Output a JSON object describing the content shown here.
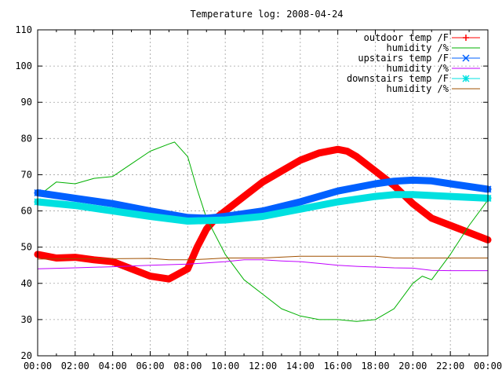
{
  "chart_data": {
    "type": "line",
    "title": "Temperature log: 2008-04-24",
    "xlabel": "",
    "ylabel": "",
    "x_ticks": [
      "00:00",
      "02:00",
      "04:00",
      "06:00",
      "08:00",
      "10:00",
      "12:00",
      "14:00",
      "16:00",
      "18:00",
      "20:00",
      "22:00",
      "00:00"
    ],
    "xlim": [
      0,
      24
    ],
    "ylim": [
      20,
      110
    ],
    "y_ticks": [
      20,
      30,
      40,
      50,
      60,
      70,
      80,
      90,
      100,
      110
    ],
    "grid": true,
    "legend_position": "top-right",
    "series": [
      {
        "name": "outdoor temp /F",
        "color": "#ff0000",
        "marker": "plus",
        "points": [
          [
            0,
            48
          ],
          [
            1,
            47
          ],
          [
            2,
            47.2
          ],
          [
            3,
            46.5
          ],
          [
            4,
            46
          ],
          [
            5,
            44
          ],
          [
            6,
            42
          ],
          [
            7,
            41.2
          ],
          [
            8,
            44
          ],
          [
            8.5,
            50
          ],
          [
            9,
            55
          ],
          [
            9.5,
            58
          ],
          [
            10,
            60
          ],
          [
            11,
            64
          ],
          [
            12,
            68
          ],
          [
            13,
            71
          ],
          [
            14,
            74
          ],
          [
            15,
            76
          ],
          [
            16,
            77
          ],
          [
            16.5,
            76.5
          ],
          [
            17,
            75
          ],
          [
            18,
            71
          ],
          [
            19,
            67
          ],
          [
            20,
            62
          ],
          [
            21,
            58
          ],
          [
            22,
            56
          ],
          [
            23,
            54
          ],
          [
            24,
            52
          ]
        ]
      },
      {
        "name": "humidity /%",
        "color": "#00b000",
        "marker": "none",
        "points": [
          [
            0,
            64
          ],
          [
            1,
            68
          ],
          [
            2,
            67.5
          ],
          [
            3,
            69
          ],
          [
            4,
            69.5
          ],
          [
            5,
            73
          ],
          [
            6,
            76.5
          ],
          [
            7,
            78.5
          ],
          [
            7.3,
            79
          ],
          [
            8,
            75
          ],
          [
            8.5,
            66
          ],
          [
            9,
            58
          ],
          [
            10,
            48
          ],
          [
            11,
            41
          ],
          [
            12,
            37
          ],
          [
            13,
            33
          ],
          [
            14,
            31
          ],
          [
            15,
            30
          ],
          [
            16,
            30
          ],
          [
            17,
            29.5
          ],
          [
            18,
            30
          ],
          [
            19,
            33
          ],
          [
            20,
            40
          ],
          [
            20.5,
            42
          ],
          [
            21,
            41
          ],
          [
            22,
            48
          ],
          [
            23,
            56
          ],
          [
            24,
            63
          ]
        ]
      },
      {
        "name": "upstairs temp /F",
        "color": "#0060ff",
        "marker": "x",
        "points": [
          [
            0,
            65
          ],
          [
            2,
            63.5
          ],
          [
            4,
            62
          ],
          [
            6,
            60
          ],
          [
            8,
            58.2
          ],
          [
            9,
            58
          ],
          [
            10,
            58.5
          ],
          [
            12,
            60
          ],
          [
            14,
            62.5
          ],
          [
            16,
            65.5
          ],
          [
            18,
            67.5
          ],
          [
            19,
            68.2
          ],
          [
            20,
            68.5
          ],
          [
            21,
            68.3
          ],
          [
            22,
            67.5
          ],
          [
            24,
            66
          ]
        ]
      },
      {
        "name": "humidity /%",
        "color": "#c000ff",
        "marker": "none",
        "points": [
          [
            0,
            44
          ],
          [
            2,
            44.3
          ],
          [
            4,
            44.6
          ],
          [
            6,
            45
          ],
          [
            8,
            45.3
          ],
          [
            10,
            46
          ],
          [
            11,
            46.5
          ],
          [
            12,
            46.5
          ],
          [
            13,
            46.2
          ],
          [
            14,
            46
          ],
          [
            15,
            45.5
          ],
          [
            16,
            45
          ],
          [
            17,
            44.7
          ],
          [
            18,
            44.5
          ],
          [
            19,
            44.3
          ],
          [
            20,
            44.2
          ],
          [
            21,
            43.6
          ],
          [
            22,
            43.5
          ],
          [
            24,
            43.5
          ]
        ]
      },
      {
        "name": "downstairs temp /F",
        "color": "#00e0e0",
        "marker": "star",
        "points": [
          [
            0,
            62.5
          ],
          [
            2,
            61.5
          ],
          [
            4,
            60
          ],
          [
            6,
            58.5
          ],
          [
            8,
            57.2
          ],
          [
            10,
            57.5
          ],
          [
            12,
            58.5
          ],
          [
            14,
            60.5
          ],
          [
            16,
            62.5
          ],
          [
            18,
            64
          ],
          [
            19,
            64.5
          ],
          [
            20,
            64.5
          ],
          [
            22,
            64
          ],
          [
            24,
            63.5
          ]
        ]
      },
      {
        "name": "humidity /%",
        "color": "#a05000",
        "marker": "none",
        "points": [
          [
            0,
            46.7
          ],
          [
            2,
            46.8
          ],
          [
            4,
            46.8
          ],
          [
            6,
            46.9
          ],
          [
            7,
            46.5
          ],
          [
            8,
            46.5
          ],
          [
            9,
            46.7
          ],
          [
            10,
            47
          ],
          [
            12,
            47
          ],
          [
            14,
            47.5
          ],
          [
            16,
            47.5
          ],
          [
            18,
            47.5
          ],
          [
            19,
            47
          ],
          [
            20,
            47
          ],
          [
            22,
            47
          ],
          [
            24,
            47
          ]
        ]
      }
    ]
  }
}
